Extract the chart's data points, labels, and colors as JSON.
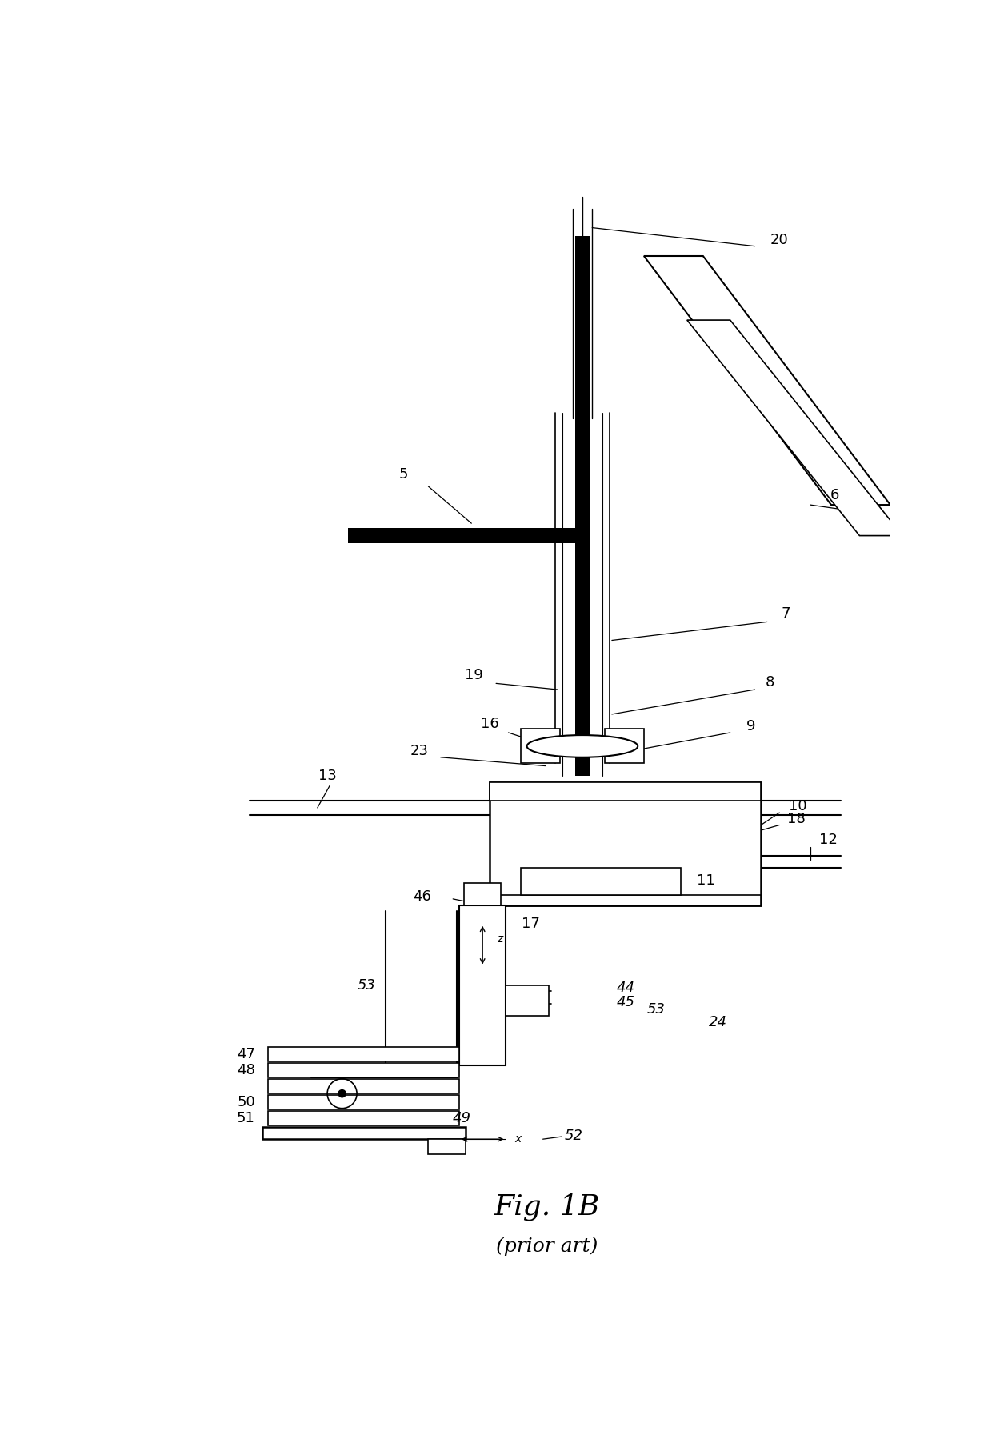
{
  "bg_color": "#ffffff",
  "fig_label": "Fig. 1B",
  "fig_sublabel": "(prior art)"
}
